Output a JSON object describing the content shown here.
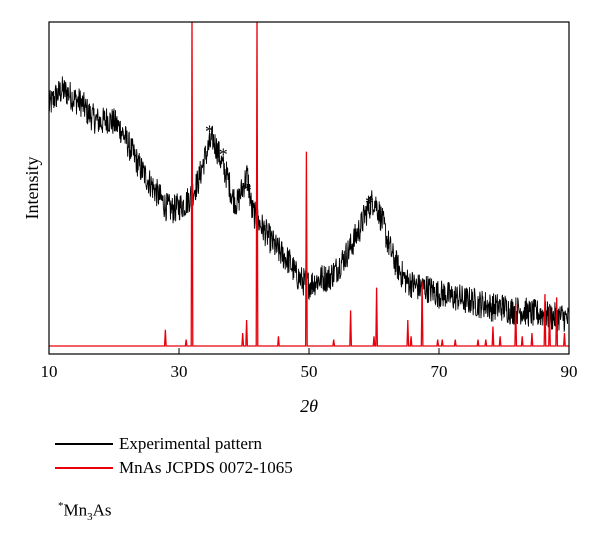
{
  "chart_data": {
    "type": "line",
    "xlabel": "2θ",
    "ylabel": "Intensity",
    "xlim": [
      10,
      90
    ],
    "xticks": [
      10,
      30,
      50,
      70,
      90
    ],
    "y_ticks_shown": false,
    "grid": false,
    "legend_position": "below-left",
    "series": [
      {
        "name": "Experimental pattern",
        "color": "#000000",
        "x": [
          10,
          11,
          12,
          13,
          14,
          15,
          16,
          17,
          18,
          19,
          20,
          21,
          22,
          23,
          24,
          25,
          26,
          27,
          28,
          29,
          30,
          31,
          32,
          33,
          33.8,
          34.5,
          35.2,
          36,
          36.8,
          37.5,
          38.2,
          39,
          39.8,
          40.5,
          41.2,
          42,
          43,
          44,
          45,
          46,
          47,
          48,
          49,
          50,
          51,
          52,
          53,
          54,
          55,
          56,
          57,
          58,
          58.5,
          59,
          59.5,
          60,
          60.5,
          61,
          61.5,
          62,
          63,
          64,
          65,
          66,
          67,
          68,
          69,
          70,
          71,
          72,
          73,
          74,
          75,
          76,
          77,
          78,
          79,
          80,
          81,
          82,
          83,
          84,
          85,
          86,
          87,
          88,
          89,
          90
        ],
        "y": [
          0.74,
          0.77,
          0.79,
          0.78,
          0.76,
          0.75,
          0.72,
          0.7,
          0.69,
          0.7,
          0.69,
          0.67,
          0.63,
          0.59,
          0.55,
          0.52,
          0.49,
          0.46,
          0.43,
          0.42,
          0.43,
          0.44,
          0.47,
          0.51,
          0.57,
          0.61,
          0.64,
          0.6,
          0.55,
          0.52,
          0.46,
          0.44,
          0.49,
          0.53,
          0.42,
          0.39,
          0.36,
          0.33,
          0.3,
          0.28,
          0.26,
          0.22,
          0.2,
          0.19,
          0.2,
          0.21,
          0.21,
          0.23,
          0.26,
          0.29,
          0.33,
          0.37,
          0.4,
          0.42,
          0.44,
          0.45,
          0.43,
          0.4,
          0.37,
          0.33,
          0.27,
          0.23,
          0.2,
          0.19,
          0.18,
          0.18,
          0.17,
          0.16,
          0.16,
          0.15,
          0.15,
          0.14,
          0.14,
          0.13,
          0.13,
          0.12,
          0.12,
          0.12,
          0.11,
          0.11,
          0.11,
          0.1,
          0.1,
          0.1,
          0.09,
          0.09,
          0.09,
          0.08
        ]
      },
      {
        "name": "MnAs JCPDS 0072-1065",
        "color": "#e8000b",
        "type": "stick",
        "baseline": 0,
        "peaks": [
          [
            27.9,
            0.05
          ],
          [
            31.1,
            0.02
          ],
          [
            32.0,
            1.02
          ],
          [
            39.8,
            0.04
          ],
          [
            40.4,
            0.08
          ],
          [
            42.0,
            1.02
          ],
          [
            45.3,
            0.03
          ],
          [
            49.6,
            0.6
          ],
          [
            53.8,
            0.02
          ],
          [
            56.4,
            0.11
          ],
          [
            60.0,
            0.03
          ],
          [
            60.4,
            0.18
          ],
          [
            65.2,
            0.08
          ],
          [
            65.7,
            0.03
          ],
          [
            67.4,
            0.2
          ],
          [
            69.8,
            0.02
          ],
          [
            70.5,
            0.02
          ],
          [
            72.5,
            0.02
          ],
          [
            76.0,
            0.02
          ],
          [
            77.2,
            0.02
          ],
          [
            78.3,
            0.06
          ],
          [
            79.4,
            0.03
          ],
          [
            81.8,
            0.13
          ],
          [
            82.8,
            0.03
          ],
          [
            84.3,
            0.04
          ],
          [
            86.3,
            0.16
          ],
          [
            87.0,
            0.12
          ],
          [
            88.1,
            0.15
          ],
          [
            89.3,
            0.04
          ]
        ]
      }
    ],
    "annotations": [
      {
        "text": "*",
        "x": 34.7,
        "y": 0.68
      },
      {
        "text": "*",
        "x": 36.8,
        "y": 0.61
      },
      {
        "text": "*",
        "x": 40.5,
        "y": 0.5
      },
      {
        "text": "*",
        "x": 59.3,
        "y": 0.46
      }
    ]
  },
  "legend": [
    {
      "label": "Experimental pattern",
      "color": "#000000"
    },
    {
      "label": "MnAs JCPDS 0072-1065",
      "color": "#e8000b"
    }
  ],
  "footnote": {
    "mark": "*",
    "text_main": "Mn",
    "text_sub": "3",
    "text_tail": "As"
  }
}
